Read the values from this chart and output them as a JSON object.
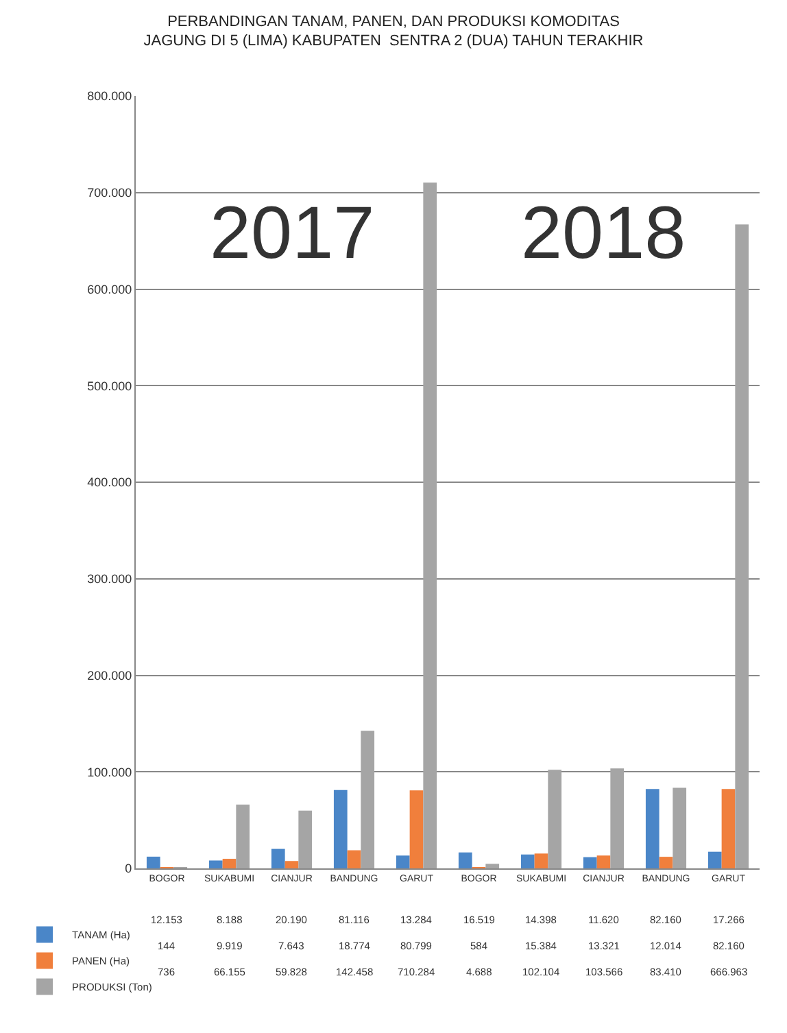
{
  "chart_data": {
    "type": "bar",
    "title": "PERBANDINGAN TANAM, PANEN, DAN PRODUKSI KOMODITAS\nJAGUNG DI 5 (LIMA) KABUPATEN  SENTRA 2 (DUA) TAHUN TERAKHIR",
    "categories": [
      "BOGOR",
      "SUKABUMI",
      "CIANJUR",
      "BANDUNG",
      "GARUT",
      "BOGOR",
      "SUKABUMI",
      "CIANJUR",
      "BANDUNG",
      "GARUT"
    ],
    "series": [
      {
        "name": "TANAM (Ha)",
        "color": "#4a86c8",
        "values": [
          12153,
          8188,
          20190,
          81116,
          13284,
          16519,
          14398,
          11620,
          82160,
          17266
        ],
        "value_labels": [
          "12.153",
          "8.188",
          "20.190",
          "81.116",
          "13.284",
          "16.519",
          "14.398",
          "11.620",
          "82.160",
          "17.266"
        ]
      },
      {
        "name": "PANEN (Ha)",
        "color": "#f07f3c",
        "values": [
          144,
          9919,
          7643,
          18774,
          80799,
          584,
          15384,
          13321,
          12014,
          82160
        ],
        "value_labels": [
          "144",
          "9.919",
          "7.643",
          "18.774",
          "80.799",
          "584",
          "15.384",
          "13.321",
          "12.014",
          "82.160"
        ]
      },
      {
        "name": "PRODUKSI (Ton)",
        "color": "#a5a5a5",
        "values": [
          736,
          66155,
          59828,
          142458,
          710284,
          4688,
          102104,
          103566,
          83410,
          666963
        ],
        "value_labels": [
          "736",
          "66.155",
          "59.828",
          "142.458",
          "710.284",
          "4.688",
          "102.104",
          "103.566",
          "83.410",
          "666.963"
        ]
      }
    ],
    "annotations": [
      "2017",
      "2018"
    ],
    "ylim": [
      0,
      800000
    ],
    "yticks": [
      0,
      {
        "value": 100000,
        "label": "100.000"
      },
      {
        "value": 200000,
        "label": "200.000"
      },
      {
        "value": 300000,
        "label": "300.000"
      },
      {
        "value": 400000,
        "label": "400.000"
      },
      {
        "value": 500000,
        "label": "500.000"
      },
      {
        "value": 600000,
        "label": "600.000"
      },
      {
        "value": 700000,
        "label": "700.000"
      },
      {
        "value": 800000,
        "label": "800.000"
      }
    ],
    "grid": "y",
    "legend": "bottom left"
  }
}
